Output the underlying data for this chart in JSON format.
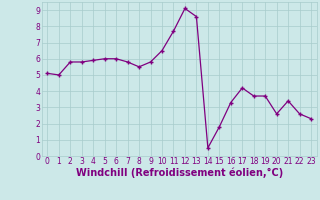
{
  "x": [
    0,
    1,
    2,
    3,
    4,
    5,
    6,
    7,
    8,
    9,
    10,
    11,
    12,
    13,
    14,
    15,
    16,
    17,
    18,
    19,
    20,
    21,
    22,
    23
  ],
  "y": [
    5.1,
    5.0,
    5.8,
    5.8,
    5.9,
    6.0,
    6.0,
    5.8,
    5.5,
    5.8,
    6.5,
    7.7,
    9.1,
    8.6,
    0.5,
    1.8,
    3.3,
    4.2,
    3.7,
    3.7,
    2.6,
    3.4,
    2.6,
    2.3
  ],
  "xlabel": "Windchill (Refroidissement éolien,°C)",
  "xlim": [
    -0.5,
    23.5
  ],
  "ylim": [
    0,
    9.5
  ],
  "xticks": [
    0,
    1,
    2,
    3,
    4,
    5,
    6,
    7,
    8,
    9,
    10,
    11,
    12,
    13,
    14,
    15,
    16,
    17,
    18,
    19,
    20,
    21,
    22,
    23
  ],
  "yticks": [
    0,
    1,
    2,
    3,
    4,
    5,
    6,
    7,
    8,
    9
  ],
  "line_color": "#800080",
  "marker": "+",
  "marker_color": "#800080",
  "bg_color": "#cce8e8",
  "grid_color": "#a8cccc",
  "label_color": "#800080",
  "tick_color": "#800080",
  "font_size_label": 7.0,
  "font_size_tick": 5.5,
  "line_width": 0.9,
  "marker_size": 3.5
}
